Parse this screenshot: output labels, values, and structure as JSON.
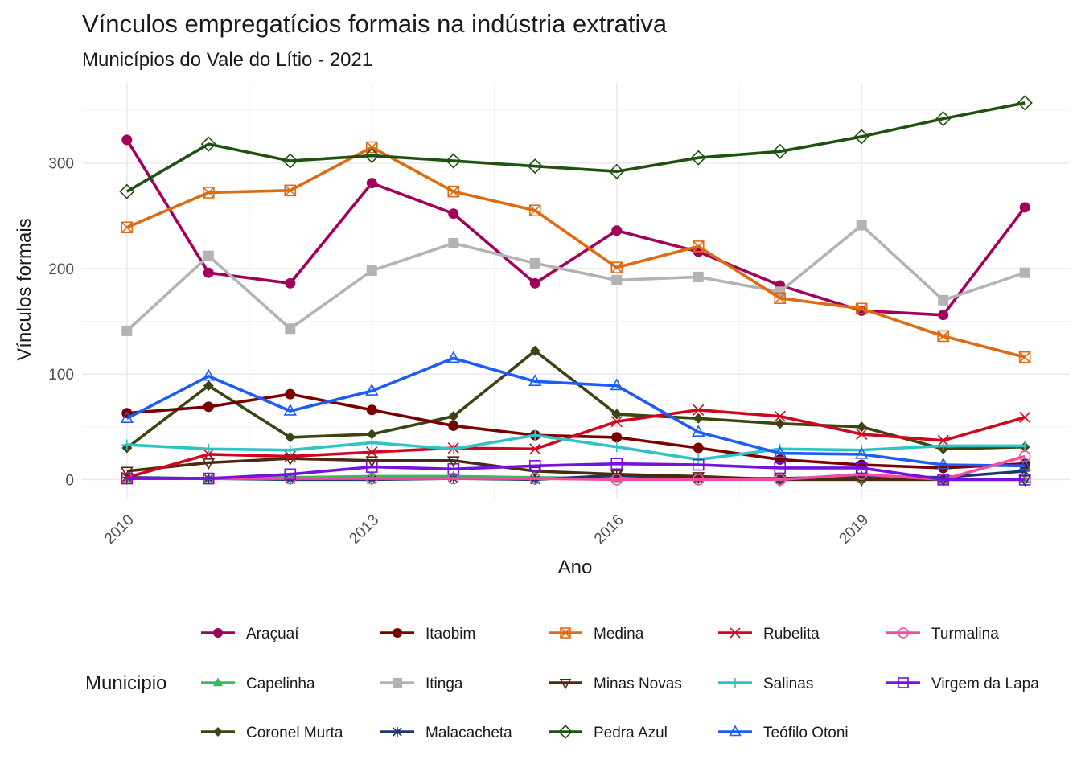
{
  "chart_data": {
    "type": "line",
    "title": "Vínculos empregatícios formais na indústria extrativa",
    "subtitle": "Municípios do Vale do Lítio - 2021",
    "xlabel": "Ano",
    "ylabel": "Vínculos formais",
    "x": [
      2010,
      2011,
      2012,
      2013,
      2014,
      2015,
      2016,
      2017,
      2018,
      2019,
      2020,
      2021
    ],
    "x_ticks": [
      2010,
      2013,
      2016,
      2019
    ],
    "y_ticks": [
      0,
      100,
      200,
      300
    ],
    "xlim": [
      2009.45,
      2021.55
    ],
    "ylim": [
      -18,
      376
    ],
    "grid": true,
    "legend_title": "Municipio",
    "legend_position": "bottom",
    "series": [
      {
        "name": "Araçuaí",
        "color": "#A3005A",
        "marker": "circle",
        "values": [
          322,
          196,
          186,
          281,
          252,
          186,
          236,
          216,
          184,
          160,
          156,
          258
        ]
      },
      {
        "name": "Capelinha",
        "color": "#3CB860",
        "marker": "triangle-filled",
        "values": [
          1,
          1,
          2,
          3,
          3,
          2,
          1,
          1,
          0,
          0,
          0,
          0
        ]
      },
      {
        "name": "Coronel Murta",
        "color": "#3B4513",
        "marker": "diamond-filled",
        "values": [
          30,
          89,
          40,
          43,
          60,
          122,
          62,
          58,
          53,
          50,
          29,
          31
        ]
      },
      {
        "name": "Itaobim",
        "color": "#7A0000",
        "marker": "circle",
        "values": [
          63,
          69,
          81,
          66,
          51,
          42,
          40,
          30,
          19,
          14,
          11,
          15
        ]
      },
      {
        "name": "Itinga",
        "color": "#B3B3B3",
        "marker": "square-filled",
        "values": [
          141,
          212,
          143,
          198,
          224,
          205,
          189,
          192,
          178,
          241,
          170,
          196
        ]
      },
      {
        "name": "Malacacheta",
        "color": "#1A3A6B",
        "marker": "asterisk",
        "values": [
          2,
          1,
          0,
          0,
          1,
          0,
          4,
          1,
          1,
          3,
          2,
          8
        ]
      },
      {
        "name": "Medina",
        "color": "#DD6B14",
        "marker": "square-x",
        "values": [
          239,
          272,
          274,
          315,
          273,
          255,
          201,
          221,
          172,
          162,
          136,
          116
        ]
      },
      {
        "name": "Minas Novas",
        "color": "#4A2A10",
        "marker": "triangle-down",
        "values": [
          8,
          16,
          20,
          18,
          18,
          8,
          5,
          3,
          0,
          0,
          0,
          0
        ]
      },
      {
        "name": "Pedra Azul",
        "color": "#1F5210",
        "marker": "diamond-open",
        "values": [
          273,
          318,
          302,
          307,
          302,
          297,
          292,
          305,
          311,
          325,
          342,
          357
        ]
      },
      {
        "name": "Rubelita",
        "color": "#D0061E",
        "marker": "x",
        "values": [
          2,
          24,
          22,
          26,
          30,
          29,
          55,
          66,
          60,
          43,
          37,
          59
        ]
      },
      {
        "name": "Salinas",
        "color": "#2EC4C4",
        "marker": "plus",
        "values": [
          33,
          29,
          28,
          35,
          29,
          42,
          31,
          19,
          29,
          28,
          32,
          32
        ]
      },
      {
        "name": "Teófilo Otoni",
        "color": "#1F5BF5",
        "marker": "triangle-open",
        "values": [
          58,
          98,
          65,
          84,
          115,
          93,
          89,
          45,
          25,
          24,
          14,
          13
        ]
      },
      {
        "name": "Turmalina",
        "color": "#F14D9E",
        "marker": "circle-open",
        "values": [
          1,
          1,
          1,
          1,
          1,
          1,
          0,
          0,
          0,
          5,
          0,
          22
        ]
      },
      {
        "name": "Virgem da Lapa",
        "color": "#7611E0",
        "marker": "square-open",
        "values": [
          1,
          1,
          5,
          12,
          10,
          13,
          15,
          14,
          11,
          11,
          0,
          0
        ]
      }
    ]
  }
}
